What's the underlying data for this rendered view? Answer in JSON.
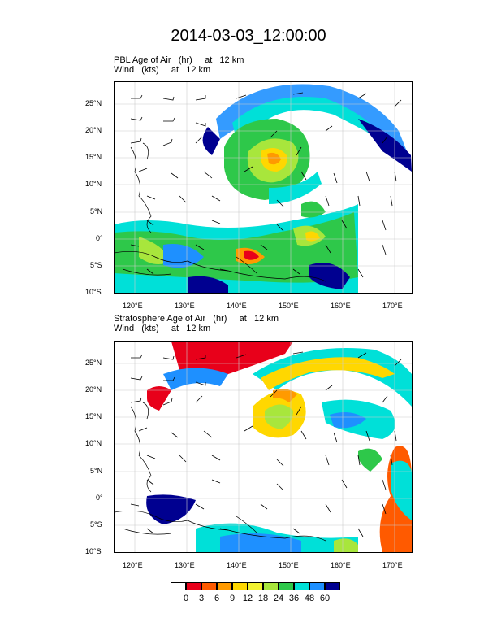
{
  "title": "2014-03-03_12:00:00",
  "panels": [
    {
      "line1": "PBL Age of Air   (hr)     at   12 km",
      "line2": "Wind   (kts)     at   12 km"
    },
    {
      "line1": "Stratosphere Age of Air   (hr)     at   12 km",
      "line2": "Wind   (kts)     at   12 km"
    }
  ],
  "axes": {
    "lon_labels": [
      "120°E",
      "130°E",
      "140°E",
      "150°E",
      "160°E",
      "170°E"
    ],
    "lon_values": [
      120,
      130,
      140,
      150,
      160,
      170
    ],
    "lat_labels": [
      "25°N",
      "20°N",
      "15°N",
      "10°N",
      "5°N",
      "0°",
      "5°S",
      "10°S"
    ],
    "lat_values": [
      25,
      20,
      15,
      10,
      5,
      0,
      -5,
      -10
    ],
    "lon_range": [
      116,
      173
    ],
    "lat_range": [
      -10,
      29
    ]
  },
  "colorbar": {
    "labels": [
      "0",
      "3",
      "6",
      "9",
      "12",
      "18",
      "24",
      "36",
      "48",
      "60"
    ],
    "colors": [
      "#ffffff",
      "#e8001a",
      "#ff5a00",
      "#ff9a00",
      "#ffd700",
      "#f2f230",
      "#a8e63c",
      "#2ec84a",
      "#00e0d8",
      "#1e90ff",
      "#000090"
    ]
  }
}
